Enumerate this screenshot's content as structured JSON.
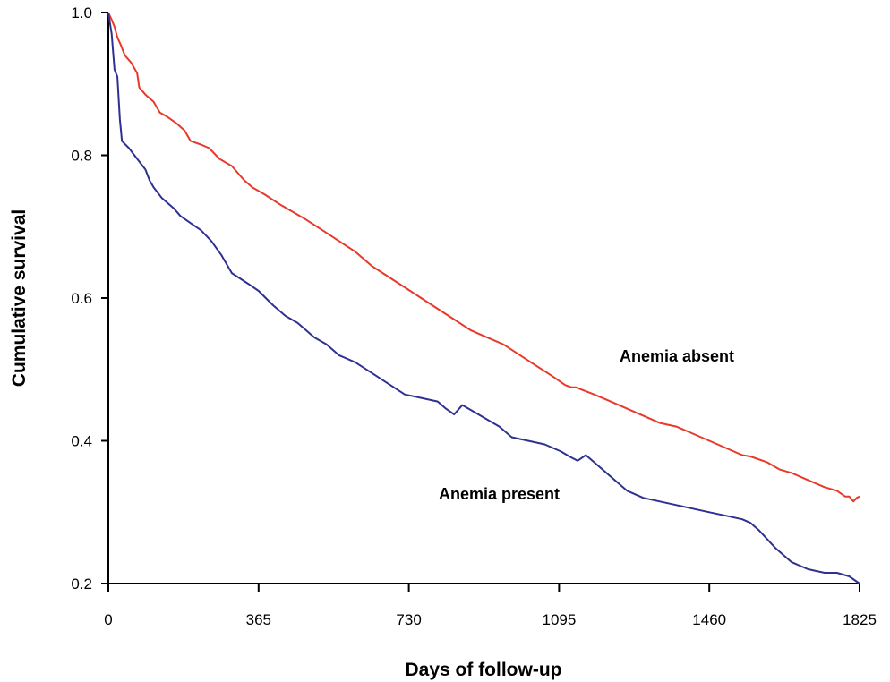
{
  "chart_data": {
    "type": "line",
    "title": "",
    "xlabel": "Days of follow-up",
    "ylabel": "Cumulative survival",
    "xlim": [
      0,
      1825
    ],
    "ylim": [
      0.2,
      1.0
    ],
    "x_ticks": [
      0,
      365,
      730,
      1095,
      1460,
      1825
    ],
    "y_ticks": [
      0.2,
      0.4,
      0.6,
      0.8,
      1.0
    ],
    "x_tick_labels": [
      "0",
      "365",
      "730",
      "1095",
      "1460",
      "1825"
    ],
    "y_tick_labels": [
      "0.2",
      "0.4",
      "0.6",
      "0.8",
      "1.0"
    ],
    "grid": false,
    "legend": "none",
    "series": [
      {
        "name": "Anemia absent",
        "color": "#e8392b",
        "x": [
          0,
          8,
          15,
          22,
          30,
          40,
          55,
          70,
          75,
          90,
          110,
          125,
          140,
          165,
          185,
          200,
          225,
          245,
          270,
          300,
          330,
          350,
          380,
          420,
          450,
          480,
          520,
          560,
          600,
          640,
          680,
          720,
          760,
          800,
          840,
          880,
          920,
          960,
          1000,
          1040,
          1080,
          1110,
          1125,
          1135,
          1180,
          1220,
          1260,
          1300,
          1340,
          1380,
          1420,
          1460,
          1500,
          1540,
          1560,
          1600,
          1630,
          1660,
          1700,
          1740,
          1770,
          1790,
          1800,
          1810,
          1818,
          1825
        ],
        "values": [
          1.0,
          0.99,
          0.98,
          0.965,
          0.955,
          0.94,
          0.93,
          0.915,
          0.895,
          0.885,
          0.875,
          0.86,
          0.855,
          0.845,
          0.835,
          0.82,
          0.815,
          0.81,
          0.795,
          0.785,
          0.765,
          0.755,
          0.745,
          0.73,
          0.72,
          0.71,
          0.695,
          0.68,
          0.665,
          0.645,
          0.63,
          0.615,
          0.6,
          0.585,
          0.57,
          0.555,
          0.545,
          0.535,
          0.52,
          0.505,
          0.49,
          0.478,
          0.475,
          0.475,
          0.465,
          0.455,
          0.445,
          0.435,
          0.425,
          0.42,
          0.41,
          0.4,
          0.39,
          0.38,
          0.378,
          0.37,
          0.36,
          0.355,
          0.345,
          0.335,
          0.33,
          0.322,
          0.322,
          0.315,
          0.32,
          0.322
        ]
      },
      {
        "name": "Anemia present",
        "color": "#2e3192",
        "x": [
          0,
          8,
          15,
          22,
          28,
          33,
          50,
          70,
          90,
          100,
          110,
          130,
          160,
          175,
          200,
          225,
          250,
          275,
          300,
          340,
          365,
          400,
          430,
          460,
          500,
          530,
          560,
          600,
          640,
          680,
          720,
          760,
          800,
          820,
          840,
          860,
          890,
          920,
          950,
          980,
          1020,
          1060,
          1100,
          1120,
          1140,
          1160,
          1180,
          1200,
          1230,
          1260,
          1300,
          1340,
          1380,
          1420,
          1460,
          1500,
          1540,
          1560,
          1580,
          1620,
          1660,
          1700,
          1740,
          1770,
          1800,
          1825
        ],
        "values": [
          1.0,
          0.97,
          0.92,
          0.91,
          0.85,
          0.82,
          0.81,
          0.795,
          0.78,
          0.765,
          0.755,
          0.74,
          0.725,
          0.715,
          0.705,
          0.695,
          0.68,
          0.66,
          0.635,
          0.62,
          0.61,
          0.59,
          0.575,
          0.565,
          0.545,
          0.535,
          0.52,
          0.51,
          0.495,
          0.48,
          0.465,
          0.46,
          0.455,
          0.445,
          0.437,
          0.45,
          0.44,
          0.43,
          0.42,
          0.405,
          0.4,
          0.395,
          0.385,
          0.378,
          0.372,
          0.38,
          0.37,
          0.36,
          0.345,
          0.33,
          0.32,
          0.315,
          0.31,
          0.305,
          0.3,
          0.295,
          0.29,
          0.285,
          0.275,
          0.25,
          0.23,
          0.22,
          0.215,
          0.215,
          0.21,
          0.2
        ]
      }
    ]
  }
}
